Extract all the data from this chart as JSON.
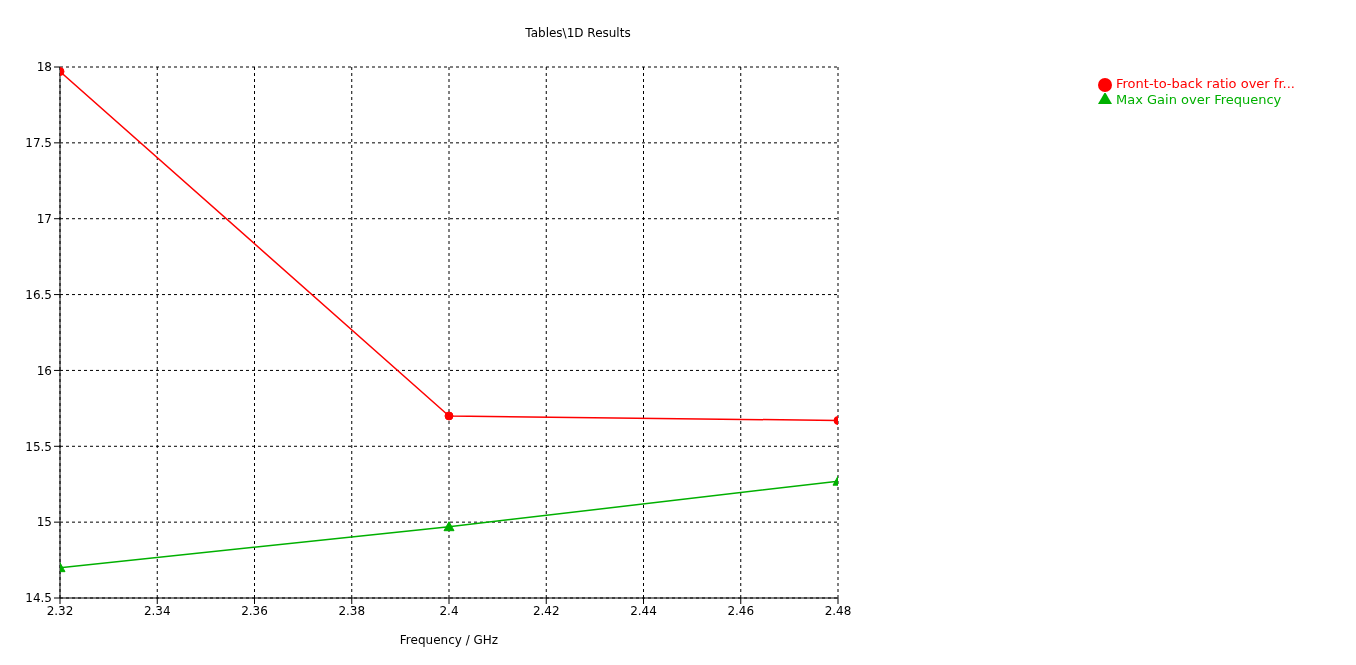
{
  "chart_data": {
    "type": "line",
    "title": "Tables\\1D Results",
    "xlabel": "Frequency / GHz",
    "x": [
      2.32,
      2.4,
      2.48
    ],
    "series": [
      {
        "name": "Front-to-back ratio over fr...",
        "color": "#ff0000",
        "marker": "circle",
        "values": [
          17.97,
          15.7,
          15.67
        ]
      },
      {
        "name": "Max Gain over Frequency",
        "color": "#00b000",
        "marker": "triangle",
        "values": [
          14.7,
          14.97,
          15.27
        ]
      }
    ],
    "xlim": [
      2.32,
      2.48
    ],
    "xticks": [
      2.32,
      2.34,
      2.36,
      2.38,
      2.4,
      2.42,
      2.44,
      2.46,
      2.48
    ],
    "ylim": [
      14.5,
      18
    ],
    "yticks": [
      14.5,
      15,
      15.5,
      16,
      16.5,
      17,
      17.5,
      18
    ],
    "grid": true,
    "legend": "top right",
    "line_style": "solid"
  }
}
